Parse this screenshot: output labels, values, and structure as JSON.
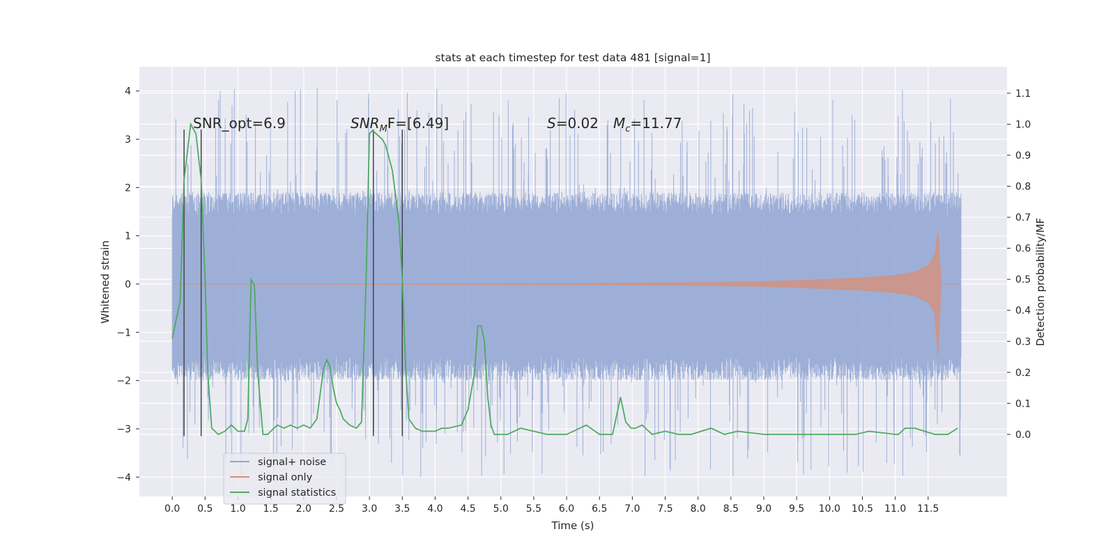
{
  "chart_data": {
    "type": "line",
    "title": "stats at each timestep for test data 481 [signal=1]",
    "xlabel": "Time (s)",
    "ylabel": "Whitened strain",
    "y2label": "Detection probability/MF",
    "xlim": [
      -0.5,
      12.7
    ],
    "ylim": [
      -4.4,
      4.5
    ],
    "y2lim": [
      -0.2,
      1.185
    ],
    "x_ticks": [
      "0.0",
      "0.5",
      "1.0",
      "1.5",
      "2.0",
      "2.5",
      "3.0",
      "3.5",
      "4.0",
      "4.5",
      "5.0",
      "5.5",
      "6.0",
      "6.5",
      "7.0",
      "7.5",
      "8.0",
      "8.5",
      "9.0",
      "9.5",
      "10.0",
      "10.5",
      "11.0",
      "11.5"
    ],
    "y_ticks": [
      "4",
      "3",
      "2",
      "1",
      "0",
      "−1",
      "−2",
      "−3",
      "−4"
    ],
    "y2_ticks": [
      "1.1",
      "1.0",
      "0.9",
      "0.8",
      "0.7",
      "0.6",
      "0.5",
      "0.4",
      "0.3",
      "0.2",
      "0.1",
      "0.0"
    ],
    "grid": true,
    "legend_placement": "lower-left",
    "annotations": {
      "snr_opt": "SNR_opt=6.9",
      "snr_mf_a": "SNR",
      "snr_mf_sub": "M",
      "snr_mf_b": "F=[6.49]",
      "s_a": "S",
      "s_b": "=0.02",
      "mc_a": "M",
      "mc_sub": "c",
      "mc_b": "=11.77"
    },
    "series": [
      {
        "name": "signal+ noise",
        "color": "#8fa5d2",
        "t_range": [
          0.0,
          12.0
        ],
        "envelope": {
          "upper_typical": 1.9,
          "lower_typical": -2.0,
          "upper_peaks": 4.1,
          "lower_peaks": -4.0
        }
      },
      {
        "name": "signal only",
        "color": "#dd8c6e",
        "x": [
          0.0,
          6.0,
          7.0,
          8.0,
          9.0,
          10.0,
          10.5,
          11.0,
          11.3,
          11.5,
          11.6,
          11.65,
          11.7,
          12.0
        ],
        "amplitude": [
          0.0,
          0.01,
          0.02,
          0.03,
          0.05,
          0.1,
          0.13,
          0.18,
          0.25,
          0.38,
          0.6,
          1.1,
          0.0,
          0.0
        ]
      },
      {
        "name": "signal statistics",
        "color": "#4eaa5f",
        "x": [
          0.0,
          0.12,
          0.18,
          0.28,
          0.36,
          0.44,
          0.5,
          0.54,
          0.6,
          0.7,
          0.8,
          0.9,
          1.0,
          1.1,
          1.15,
          1.2,
          1.25,
          1.3,
          1.38,
          1.45,
          1.5,
          1.6,
          1.7,
          1.8,
          1.9,
          2.0,
          2.1,
          2.2,
          2.3,
          2.35,
          2.4,
          2.45,
          2.5,
          2.55,
          2.6,
          2.7,
          2.8,
          2.88,
          2.95,
          3.0,
          3.05,
          3.1,
          3.15,
          3.2,
          3.25,
          3.35,
          3.45,
          3.5,
          3.55,
          3.6,
          3.7,
          3.8,
          3.9,
          4.0,
          4.1,
          4.2,
          4.4,
          4.5,
          4.6,
          4.65,
          4.7,
          4.75,
          4.8,
          4.85,
          4.9,
          5.0,
          5.1,
          5.2,
          5.3,
          5.5,
          5.7,
          6.0,
          6.3,
          6.5,
          6.7,
          6.82,
          6.9,
          6.98,
          7.05,
          7.15,
          7.3,
          7.5,
          7.7,
          7.9,
          8.05,
          8.2,
          8.4,
          8.6,
          9.0,
          9.5,
          10.0,
          10.4,
          10.6,
          11.0,
          11.05,
          11.15,
          11.3,
          11.6,
          11.8,
          11.95
        ],
        "y": [
          0.31,
          0.43,
          0.82,
          1.0,
          0.97,
          0.82,
          0.5,
          0.2,
          0.02,
          0.0,
          0.01,
          0.03,
          0.01,
          0.01,
          0.05,
          0.5,
          0.48,
          0.2,
          0.0,
          0.0,
          0.01,
          0.03,
          0.02,
          0.03,
          0.02,
          0.03,
          0.02,
          0.05,
          0.21,
          0.24,
          0.22,
          0.15,
          0.1,
          0.08,
          0.05,
          0.03,
          0.02,
          0.04,
          0.5,
          0.97,
          0.98,
          0.97,
          0.96,
          0.95,
          0.93,
          0.85,
          0.68,
          0.5,
          0.22,
          0.05,
          0.02,
          0.01,
          0.01,
          0.01,
          0.02,
          0.02,
          0.03,
          0.08,
          0.2,
          0.35,
          0.35,
          0.3,
          0.12,
          0.03,
          0.0,
          0.0,
          0.0,
          0.01,
          0.02,
          0.01,
          0.0,
          0.0,
          0.03,
          0.0,
          0.0,
          0.12,
          0.04,
          0.02,
          0.02,
          0.03,
          0.0,
          0.01,
          0.0,
          0.0,
          0.01,
          0.02,
          0.0,
          0.01,
          0.0,
          0.0,
          0.0,
          0.0,
          0.01,
          0.0,
          0.0,
          0.02,
          0.02,
          0.0,
          0.0,
          0.02
        ]
      }
    ],
    "vertical_markers": {
      "color": "#444444",
      "x": [
        0.18,
        0.44,
        3.06,
        3.5
      ],
      "y_bottom": -3.15,
      "y_top": 3.2
    }
  }
}
